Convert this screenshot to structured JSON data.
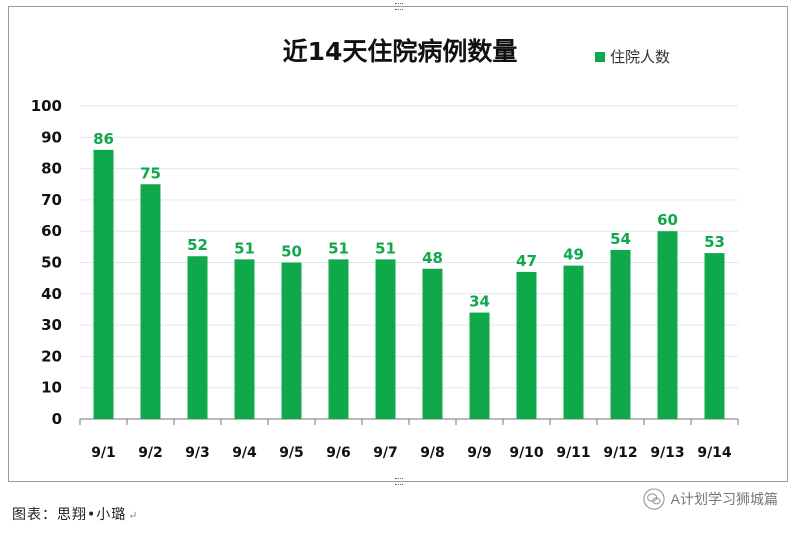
{
  "chart_data": {
    "type": "bar",
    "title": "近14天住院病例数量",
    "categories": [
      "9/1",
      "9/2",
      "9/3",
      "9/4",
      "9/5",
      "9/6",
      "9/7",
      "9/8",
      "9/9",
      "9/10",
      "9/11",
      "9/12",
      "9/13",
      "9/14"
    ],
    "series": [
      {
        "name": "住院人数",
        "values": [
          86,
          75,
          52,
          51,
          50,
          51,
          51,
          48,
          34,
          47,
          49,
          54,
          60,
          53
        ],
        "color": "#0fa84b"
      }
    ],
    "ylim": [
      0,
      100
    ],
    "yticks": [
      0,
      10,
      20,
      30,
      40,
      50,
      60,
      70,
      80,
      90,
      100
    ],
    "grid": true,
    "legend": "top-right",
    "label_color": "#0fa84b"
  },
  "caption": "图表：思翔•小璐",
  "watermark": {
    "text": "A计划学习狮城篇",
    "icon": "wechat-icon"
  }
}
